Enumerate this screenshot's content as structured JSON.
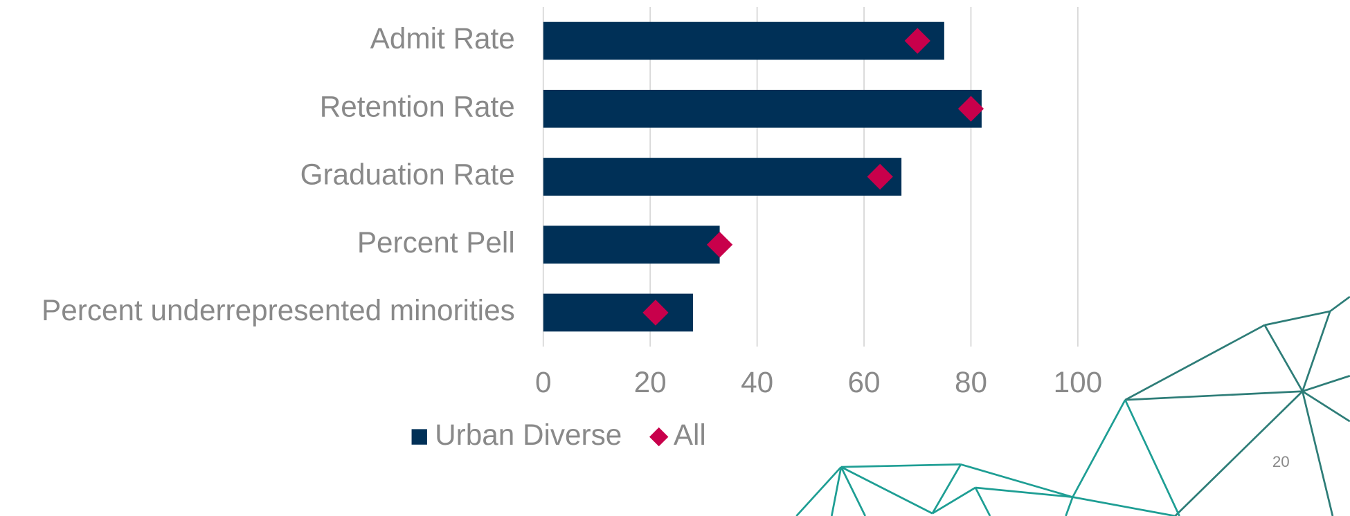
{
  "chart_data": {
    "type": "bar",
    "orientation": "horizontal",
    "categories": [
      "Admit Rate",
      "Retention Rate",
      "Graduation Rate",
      "Percent Pell",
      "Percent underrepresented minorities"
    ],
    "series": [
      {
        "name": "Urban Diverse",
        "color": "#003057",
        "values": [
          75,
          82,
          67,
          33,
          28
        ]
      },
      {
        "name": "All",
        "color": "#c8004b",
        "marker": "diamond",
        "values": [
          70,
          80,
          63,
          33,
          21
        ]
      }
    ],
    "xlim": [
      0,
      100
    ],
    "xticks": [
      0,
      20,
      40,
      60,
      80,
      100
    ],
    "grid": true,
    "legend": "bottom",
    "page_number": "20"
  }
}
